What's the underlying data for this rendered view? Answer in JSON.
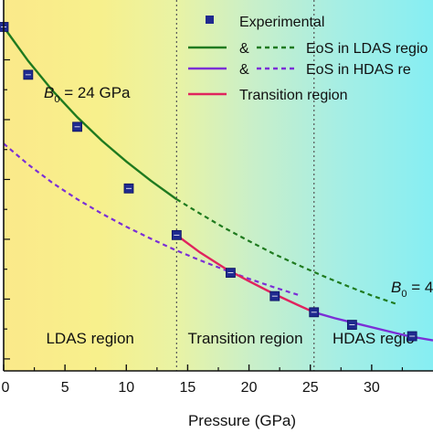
{
  "chart_data": {
    "type": "line",
    "title": "",
    "xlabel": "Pressure (GPa)",
    "ylabel": "",
    "xlim": [
      0,
      35
    ],
    "ylim": [
      0.28,
      0.9
    ],
    "x_ticks": [
      0,
      5,
      10,
      15,
      20,
      25,
      30
    ],
    "x_tick_labels": [
      "0",
      "5",
      "10",
      "15",
      "20",
      "25",
      "30"
    ],
    "grid": false,
    "legend_position": "top-right",
    "regions": [
      {
        "label": "LDAS region",
        "x_start": 0,
        "x_end": 14.1
      },
      {
        "label": "Transition region",
        "x_start": 14.1,
        "x_end": 25.3
      },
      {
        "label": "HDAS regio",
        "x_start": 25.3,
        "x_end": 35
      }
    ],
    "boundaries": [
      14.1,
      25.3
    ],
    "series": [
      {
        "name": "Experimental",
        "kind": "scatter",
        "color": "#1f2a8f",
        "x": [
          0,
          2,
          6,
          10.2,
          14.1,
          18.5,
          22.1,
          25.3,
          28.4,
          33.3
        ],
        "y": [
          0.855,
          0.775,
          0.688,
          0.585,
          0.507,
          0.444,
          0.405,
          0.378,
          0.357,
          0.338
        ]
      },
      {
        "name": "EoS in LDAS region",
        "kind": "line",
        "color": "#1f7a1f",
        "dash_from": 14.1,
        "x": [
          0,
          2,
          4,
          6,
          8,
          10,
          12,
          14.1,
          16,
          18,
          20,
          22,
          24,
          26,
          28,
          30,
          32
        ],
        "y": [
          0.855,
          0.798,
          0.748,
          0.704,
          0.665,
          0.63,
          0.598,
          0.567,
          0.543,
          0.519,
          0.497,
          0.476,
          0.457,
          0.439,
          0.422,
          0.406,
          0.392
        ]
      },
      {
        "name": "EoS in HDAS region",
        "kind": "line",
        "color": "#7b2fd6",
        "dash_until": 25.3,
        "x": [
          0,
          2,
          4,
          6,
          8,
          10,
          12,
          14,
          16,
          18,
          20,
          22,
          24,
          25.3,
          27,
          29,
          31,
          33,
          35
        ],
        "y": [
          0.66,
          0.625,
          0.594,
          0.567,
          0.543,
          0.521,
          0.501,
          0.482,
          0.465,
          0.449,
          0.434,
          0.42,
          0.407,
          0.378,
          0.368,
          0.358,
          0.348,
          0.338,
          0.331
        ]
      },
      {
        "name": "Transition region",
        "kind": "line",
        "color": "#e0245e",
        "x": [
          14.1,
          16,
          18,
          20,
          22,
          24,
          25.3
        ],
        "y": [
          0.507,
          0.478,
          0.452,
          0.43,
          0.409,
          0.39,
          0.378
        ]
      }
    ],
    "legend": {
      "experimental": "Experimental",
      "amp1": "&",
      "ldas": "EoS in LDAS regio",
      "amp2": "&",
      "hdas": "EoS in HDAS re",
      "transition": "Transition region"
    },
    "annotations": {
      "b0_ldas": "B",
      "b0_ldas_sub": "0",
      "b0_ldas_rest": " = 24 GPa",
      "b0_hdas": "B",
      "b0_hdas_sub": "0",
      "b0_hdas_rest": " = 4"
    }
  }
}
